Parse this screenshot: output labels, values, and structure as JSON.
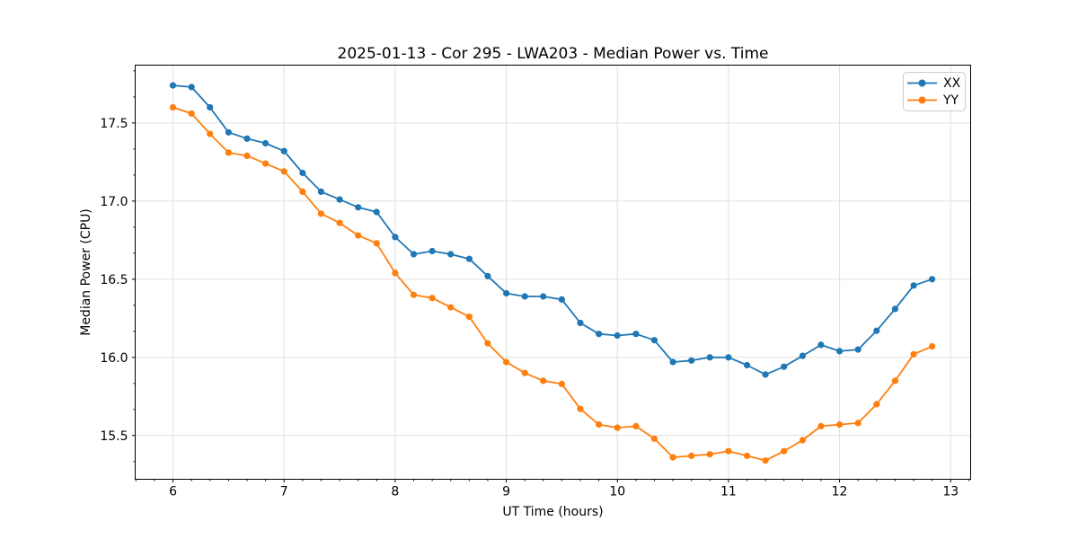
{
  "figure": {
    "background": "#ffffff",
    "grid_color": "#e0e0e0",
    "spine_color": "#000000"
  },
  "chart_data": {
    "type": "line",
    "title": "2025-01-13 - Cor 295 - LWA203 - Median Power vs. Time",
    "xlabel": "UT Time (hours)",
    "ylabel": "Median Power (CPU)",
    "xlim": [
      5.66,
      13.18
    ],
    "ylim": [
      15.22,
      17.87
    ],
    "x_major_ticks": [
      6,
      7,
      8,
      9,
      10,
      11,
      12,
      13
    ],
    "x_tick_labels": [
      "6",
      "7",
      "8",
      "9",
      "10",
      "11",
      "12",
      "13"
    ],
    "x_minor_interval": 0.166667,
    "y_major_ticks": [
      15.5,
      16.0,
      16.5,
      17.0,
      17.5
    ],
    "y_tick_labels": [
      "15.5",
      "16.0",
      "16.5",
      "17.0",
      "17.5"
    ],
    "y_minor_interval": 0.166667,
    "grid": "major-both",
    "legend_position": "upper-right",
    "marker": "circle",
    "x": [
      6.0,
      6.167,
      6.333,
      6.5,
      6.667,
      6.833,
      7.0,
      7.167,
      7.333,
      7.5,
      7.667,
      7.833,
      8.0,
      8.167,
      8.333,
      8.5,
      8.667,
      8.833,
      9.0,
      9.167,
      9.333,
      9.5,
      9.667,
      9.833,
      10.0,
      10.167,
      10.333,
      10.5,
      10.667,
      10.833,
      11.0,
      11.167,
      11.333,
      11.5,
      11.667,
      11.833,
      12.0,
      12.167,
      12.333,
      12.5,
      12.667,
      12.833
    ],
    "series": [
      {
        "name": "XX",
        "color": "#1f77b4",
        "values": [
          17.74,
          17.73,
          17.6,
          17.44,
          17.4,
          17.37,
          17.32,
          17.18,
          17.06,
          17.01,
          16.96,
          16.93,
          16.77,
          16.66,
          16.68,
          16.66,
          16.63,
          16.52,
          16.41,
          16.39,
          16.39,
          16.37,
          16.22,
          16.15,
          16.14,
          16.15,
          16.11,
          15.97,
          15.98,
          16.0,
          16.0,
          15.95,
          15.89,
          15.94,
          16.01,
          16.08,
          16.04,
          16.05,
          16.17,
          16.31,
          16.46,
          16.5
        ]
      },
      {
        "name": "YY",
        "color": "#ff7f0e",
        "values": [
          17.6,
          17.56,
          17.43,
          17.31,
          17.29,
          17.24,
          17.19,
          17.06,
          16.92,
          16.86,
          16.78,
          16.73,
          16.54,
          16.4,
          16.38,
          16.32,
          16.26,
          16.09,
          15.97,
          15.9,
          15.85,
          15.83,
          15.67,
          15.57,
          15.55,
          15.56,
          15.48,
          15.36,
          15.37,
          15.38,
          15.4,
          15.37,
          15.34,
          15.4,
          15.47,
          15.56,
          15.57,
          15.58,
          15.7,
          15.85,
          16.02,
          16.07
        ]
      }
    ]
  }
}
